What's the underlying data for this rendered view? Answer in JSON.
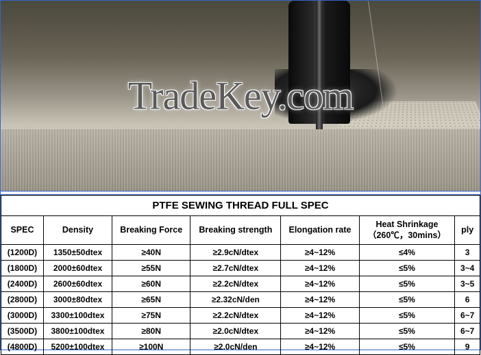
{
  "watermark": "TradeKey.com",
  "table": {
    "title": "PTFE SEWING THREAD FULL SPEC",
    "columns": [
      "SPEC",
      "Density",
      "Breaking Force",
      "Breaking strength",
      "Elongation rate",
      "Heat Shrinkage\n（260℃，30mins）",
      "ply"
    ],
    "rows": [
      {
        "spec": "(1200D)",
        "density": "1350±50dtex",
        "force": "≥40N",
        "strength": "≥2.9cN/dtex",
        "elong": "≥4~12%",
        "shrink": "≤4%",
        "ply": "3"
      },
      {
        "spec": "(1800D)",
        "density": "2000±60dtex",
        "force": "≥55N",
        "strength": "≥2.7cN/dtex",
        "elong": "≥4~12%",
        "shrink": "≤5%",
        "ply": "3~4"
      },
      {
        "spec": "(2400D)",
        "density": "2600±60dtex",
        "force": "≥60N",
        "strength": "≥2.2cN/dtex",
        "elong": "≥4~12%",
        "shrink": "≤5%",
        "ply": "3~5"
      },
      {
        "spec": "(2800D)",
        "density": "3000±80dtex",
        "force": "≥65N",
        "strength": "≥2.32cN/den",
        "elong": "≥4~12%",
        "shrink": "≤5%",
        "ply": "6"
      },
      {
        "spec": "(3000D)",
        "density": "3300±100dtex",
        "force": "≥75N",
        "strength": "≥2.2cN/dtex",
        "elong": "≥4~12%",
        "shrink": "≤5%",
        "ply": "6~7"
      },
      {
        "spec": "(3500D)",
        "density": "3800±100dtex",
        "force": "≥80N",
        "strength": "≥2.0cN/dtex",
        "elong": "≥4~12%",
        "shrink": "≤5%",
        "ply": "6~7"
      },
      {
        "spec": "(4800D)",
        "density": "5200±100dtex",
        "force": "≥100N",
        "strength": "≥2.0cN/den",
        "elong": "≥4~12%",
        "shrink": "≤5%",
        "ply": "9"
      }
    ]
  }
}
